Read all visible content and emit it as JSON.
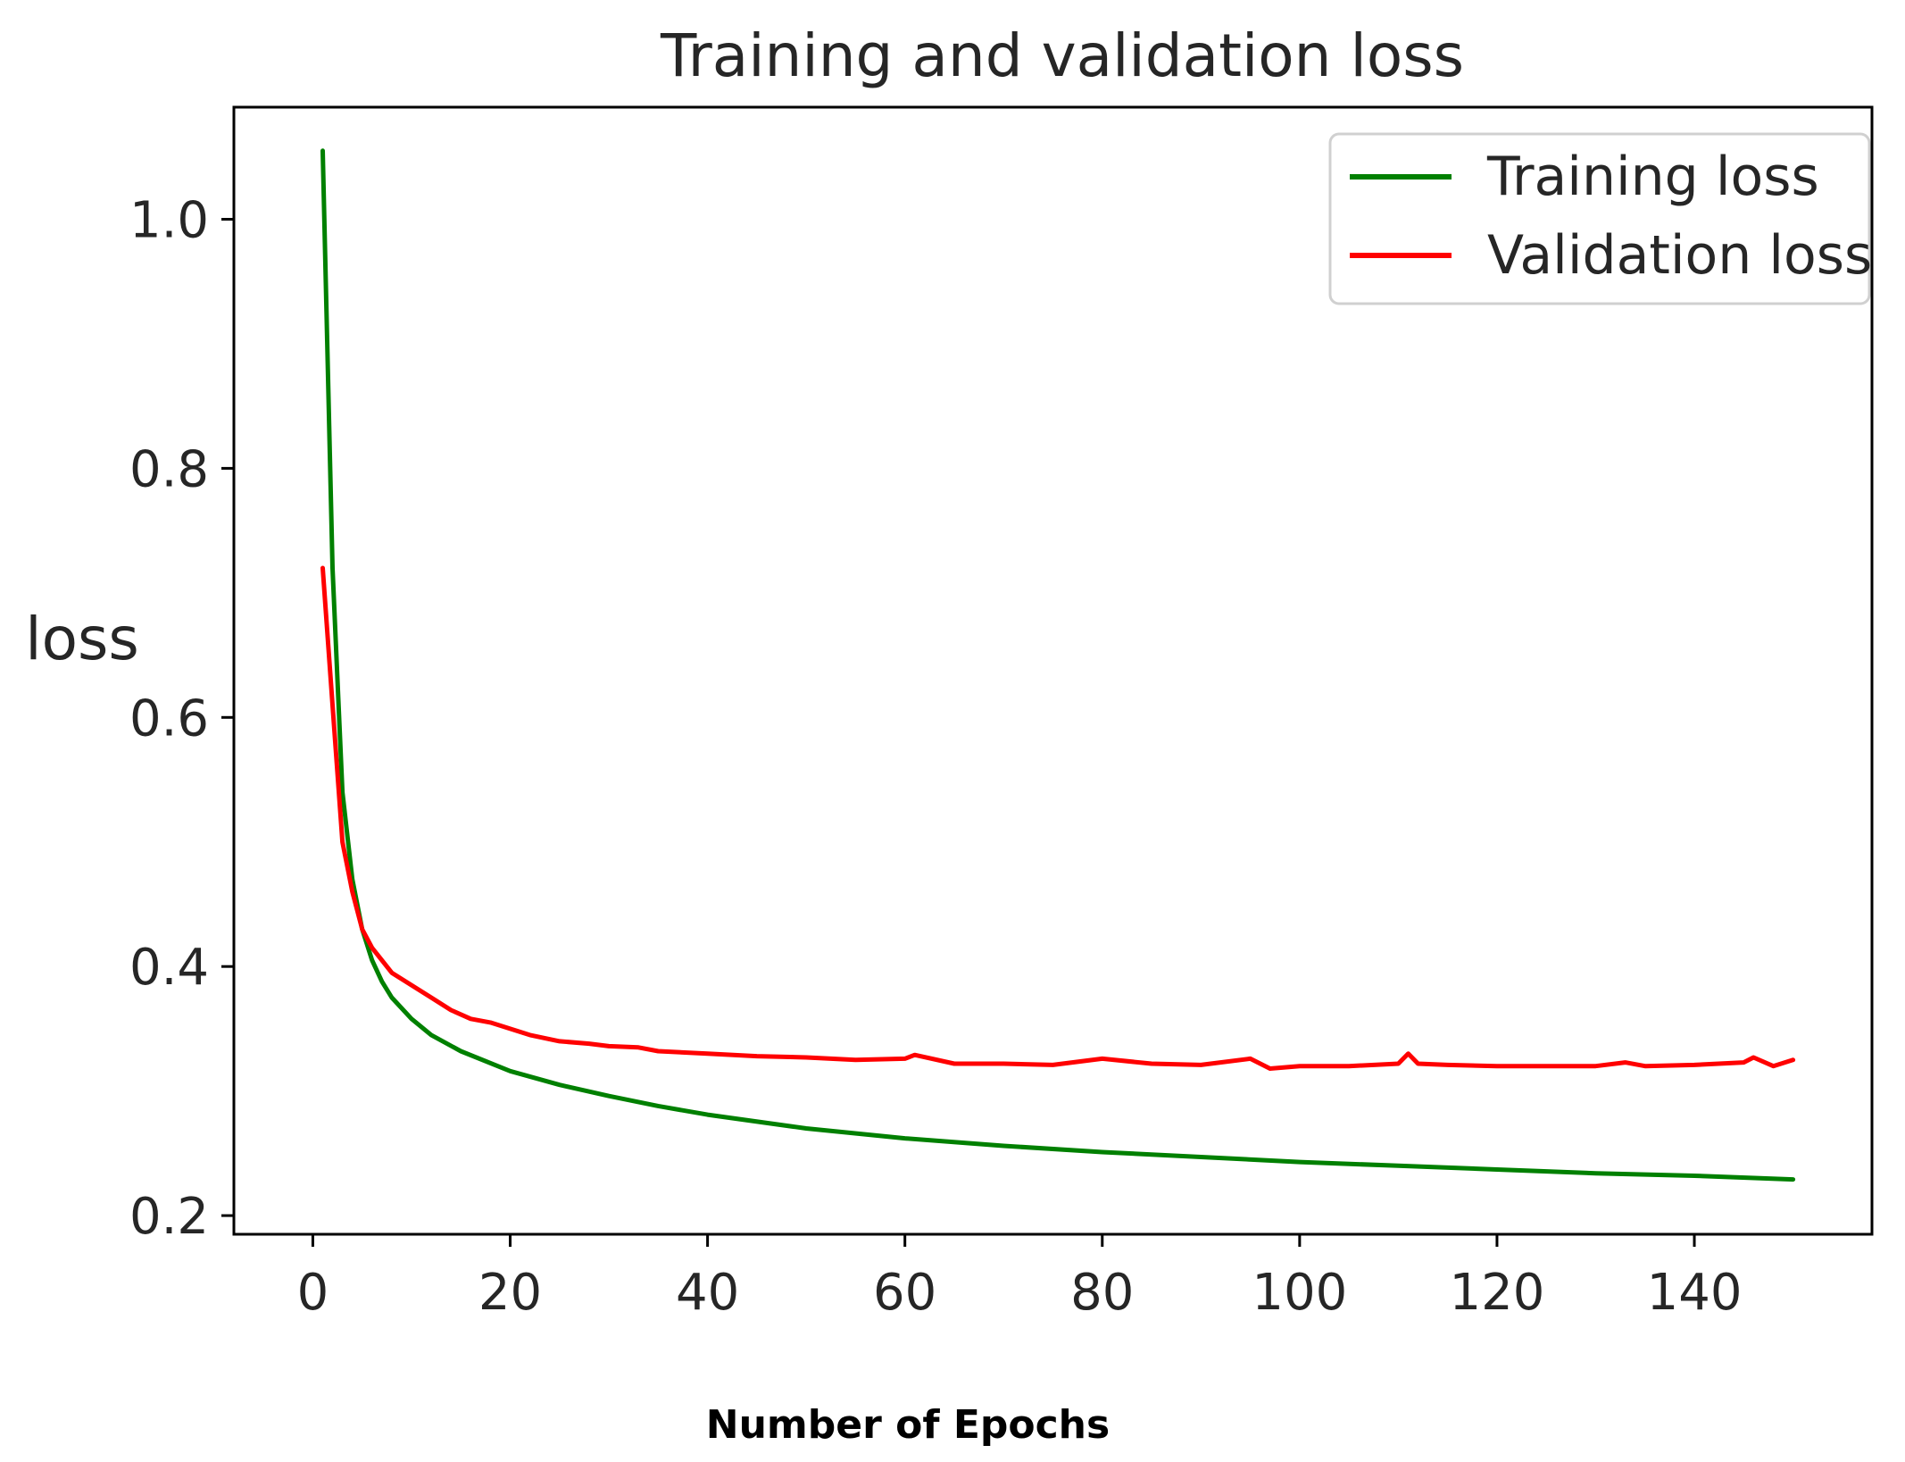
{
  "chart_data": {
    "type": "line",
    "title": "Training and validation loss",
    "xlabel": "Number of Epochs",
    "ylabel": "loss",
    "xlim": [
      -8,
      158
    ],
    "ylim": [
      0.185,
      1.09
    ],
    "xticks": [
      0,
      20,
      40,
      60,
      80,
      100,
      120,
      140
    ],
    "xtick_labels": [
      "0",
      "20",
      "40",
      "60",
      "80",
      "100",
      "120",
      "140"
    ],
    "yticks": [
      0.2,
      0.4,
      0.6,
      0.8,
      1.0
    ],
    "ytick_labels": [
      "0.2",
      "0.4",
      "0.6",
      "0.8",
      "1.0"
    ],
    "grid": false,
    "legend_position": "top-right",
    "series": [
      {
        "name": "Training loss",
        "color": "#008000",
        "x": [
          1,
          2,
          3,
          4,
          5,
          6,
          7,
          8,
          10,
          12,
          15,
          20,
          25,
          30,
          35,
          40,
          50,
          60,
          70,
          80,
          90,
          100,
          110,
          120,
          130,
          140,
          150
        ],
        "values": [
          1.055,
          0.72,
          0.54,
          0.47,
          0.43,
          0.405,
          0.388,
          0.375,
          0.358,
          0.345,
          0.332,
          0.316,
          0.305,
          0.296,
          0.288,
          0.281,
          0.27,
          0.262,
          0.256,
          0.251,
          0.247,
          0.243,
          0.24,
          0.237,
          0.234,
          0.232,
          0.229
        ]
      },
      {
        "name": "Validation loss",
        "color": "#ff0000",
        "x": [
          1,
          2,
          3,
          4,
          5,
          6,
          7,
          8,
          10,
          12,
          14,
          16,
          18,
          20,
          22,
          25,
          28,
          30,
          33,
          35,
          40,
          45,
          50,
          55,
          60,
          61,
          65,
          70,
          75,
          80,
          85,
          90,
          95,
          97,
          100,
          105,
          110,
          111,
          112,
          115,
          120,
          125,
          130,
          133,
          135,
          140,
          145,
          146,
          148,
          150
        ],
        "values": [
          0.72,
          0.61,
          0.5,
          0.46,
          0.43,
          0.415,
          0.405,
          0.395,
          0.385,
          0.375,
          0.365,
          0.358,
          0.355,
          0.35,
          0.345,
          0.34,
          0.338,
          0.336,
          0.335,
          0.332,
          0.33,
          0.328,
          0.327,
          0.325,
          0.326,
          0.329,
          0.322,
          0.322,
          0.321,
          0.326,
          0.322,
          0.321,
          0.326,
          0.318,
          0.32,
          0.32,
          0.322,
          0.33,
          0.322,
          0.321,
          0.32,
          0.32,
          0.32,
          0.323,
          0.32,
          0.321,
          0.323,
          0.327,
          0.32,
          0.325
        ]
      }
    ]
  }
}
